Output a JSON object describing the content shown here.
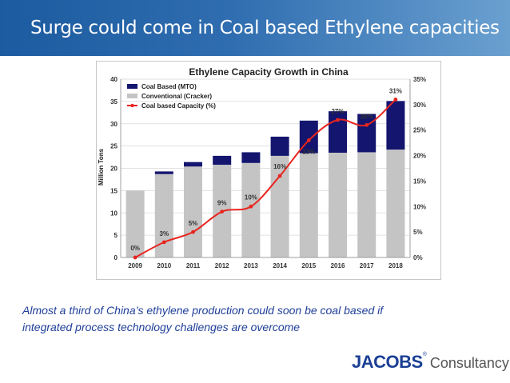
{
  "slide": {
    "title": "Surge could come in Coal based Ethylene capacities",
    "caption_line1": "Almost a third of China’s ethylene production could soon be coal based if",
    "caption_line2": "integrated process technology challenges are overcome"
  },
  "logo": {
    "brand": "JACOBS",
    "suffix": "Consultancy"
  },
  "colors": {
    "header": "#1d5ba0",
    "coal": "#13156e",
    "conventional": "#c4c4c4",
    "line": "#e8251f",
    "caption": "#1f3f9a"
  },
  "chart_data": {
    "type": "bar",
    "title": "Ethylene Capacity Growth in China",
    "ylabel": "Million Tons",
    "categories": [
      "2009",
      "2010",
      "2011",
      "2012",
      "2013",
      "2014",
      "2015",
      "2016",
      "2017",
      "2018"
    ],
    "series": [
      {
        "name": "Coal Based (MTO)",
        "kind": "bar",
        "stack": "total",
        "values": [
          0,
          0.6,
          1.0,
          2.0,
          2.4,
          4.3,
          7.3,
          9.3,
          8.6,
          10.9
        ]
      },
      {
        "name": "Conventional (Cracker)",
        "kind": "bar",
        "stack": "total",
        "values": [
          15.0,
          18.7,
          20.4,
          20.8,
          21.2,
          22.8,
          23.4,
          23.5,
          23.6,
          24.2
        ]
      },
      {
        "name": "Coal based Capacity (%)",
        "kind": "line",
        "axis": "right",
        "values": [
          0,
          3,
          5,
          9,
          10,
          16,
          23,
          27,
          26,
          31
        ]
      }
    ],
    "data_labels": [
      "0%",
      "3%",
      "5%",
      "9%",
      "10%",
      "16%",
      "23%",
      "27%",
      "26%",
      "31%"
    ],
    "ylim": [
      0,
      40
    ],
    "yticks": [
      "0",
      "5",
      "10",
      "15",
      "20",
      "25",
      "30",
      "35",
      "40"
    ],
    "y2lim": [
      0,
      35
    ],
    "y2ticks": [
      "0%",
      "5%",
      "10%",
      "15%",
      "20%",
      "25%",
      "30%",
      "35%"
    ],
    "legend": "top-left",
    "grid": true
  }
}
